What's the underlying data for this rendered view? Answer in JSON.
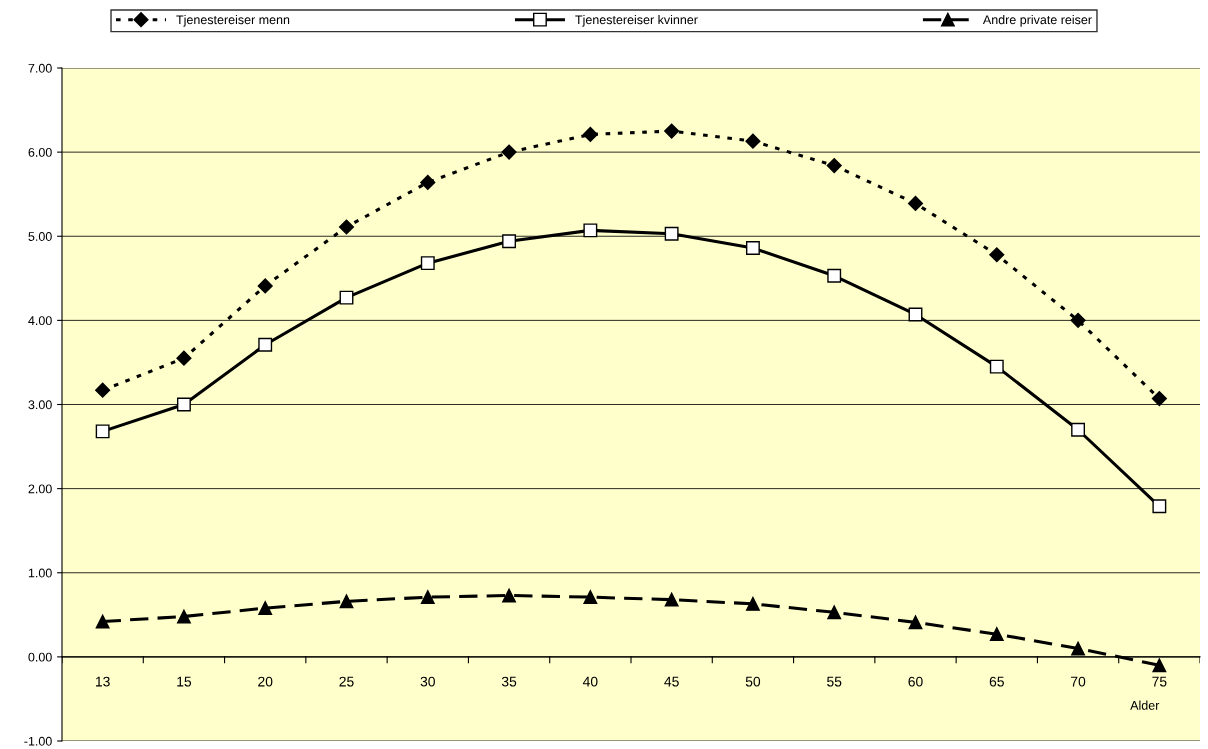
{
  "chart_data": {
    "type": "line",
    "xlabel": "Alder",
    "categories": [
      "13",
      "15",
      "20",
      "25",
      "30",
      "35",
      "40",
      "45",
      "50",
      "55",
      "60",
      "65",
      "70",
      "75"
    ],
    "series": [
      {
        "name": "Tjenestereiser menn",
        "color": "#000000",
        "marker": "diamond",
        "line_style": "dotted",
        "values": [
          3.17,
          3.55,
          4.41,
          5.11,
          5.64,
          6.0,
          6.21,
          6.25,
          6.13,
          5.84,
          5.39,
          4.78,
          4.0,
          3.07
        ]
      },
      {
        "name": "Tjenestereiser kvinner",
        "color": "#000000",
        "marker": "square",
        "line_style": "solid",
        "values": [
          2.68,
          3.0,
          3.71,
          4.27,
          4.68,
          4.94,
          5.07,
          5.03,
          4.86,
          4.53,
          4.07,
          3.45,
          2.7,
          1.79
        ]
      },
      {
        "name": "Andre private reiser",
        "color": "#000000",
        "marker": "triangle",
        "line_style": "dashed",
        "values": [
          0.42,
          0.48,
          0.58,
          0.66,
          0.71,
          0.73,
          0.71,
          0.68,
          0.63,
          0.53,
          0.41,
          0.27,
          0.1,
          -0.1
        ]
      }
    ],
    "ylim": [
      -1,
      7
    ],
    "yticks": [
      {
        "value": -1,
        "label": "-1.00"
      },
      {
        "value": 0,
        "label": "0.00"
      },
      {
        "value": 1,
        "label": "1.00"
      },
      {
        "value": 2,
        "label": "2.00"
      },
      {
        "value": 3,
        "label": "3.00"
      },
      {
        "value": 4,
        "label": "4.00"
      },
      {
        "value": 5,
        "label": "5.00"
      },
      {
        "value": 6,
        "label": "6.00"
      },
      {
        "value": 7,
        "label": "7.00"
      }
    ],
    "grid": "y",
    "legend": "top"
  }
}
